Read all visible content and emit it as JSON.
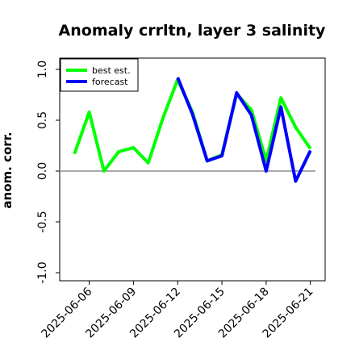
{
  "chart_data": {
    "type": "line",
    "title": "Anomaly crrltn, layer 3 salinity",
    "xlabel": "",
    "ylabel": "anom. corr.",
    "ylim": [
      -1.0,
      1.0
    ],
    "yticks": [
      "-1.0",
      "-0.5",
      "0.0",
      "0.5",
      "1.0"
    ],
    "ytick_values": [
      -1.0,
      -0.5,
      0.0,
      0.5,
      1.0
    ],
    "x": [
      "2025-06-05",
      "2025-06-06",
      "2025-06-07",
      "2025-06-08",
      "2025-06-09",
      "2025-06-10",
      "2025-06-11",
      "2025-06-12",
      "2025-06-13",
      "2025-06-14",
      "2025-06-15",
      "2025-06-16",
      "2025-06-17",
      "2025-06-18",
      "2025-06-19",
      "2025-06-20",
      "2025-06-21"
    ],
    "xlim": [
      "2025-06-04",
      "2025-06-22"
    ],
    "xticks": [
      "2025-06-06",
      "2025-06-09",
      "2025-06-12",
      "2025-06-15",
      "2025-06-18",
      "2025-06-21"
    ],
    "xtick_colors": [
      "#000000",
      "#000000",
      "#228b22",
      "#000000",
      "#000000",
      "#000000"
    ],
    "zero_line": 0.0,
    "grid": false,
    "legend_position": "upper left",
    "series": [
      {
        "name": "best est.",
        "color": "#00ff00",
        "values": [
          0.17,
          0.58,
          0.0,
          0.19,
          0.23,
          0.08,
          0.52,
          0.9,
          0.58,
          0.1,
          0.16,
          0.76,
          0.6,
          0.1,
          0.72,
          0.43,
          0.22
        ]
      },
      {
        "name": "forecast",
        "color": "#0000ff",
        "values": [
          null,
          null,
          null,
          null,
          null,
          null,
          null,
          0.92,
          0.56,
          0.1,
          0.15,
          0.77,
          0.55,
          0.0,
          0.63,
          -0.1,
          0.2
        ]
      }
    ]
  }
}
